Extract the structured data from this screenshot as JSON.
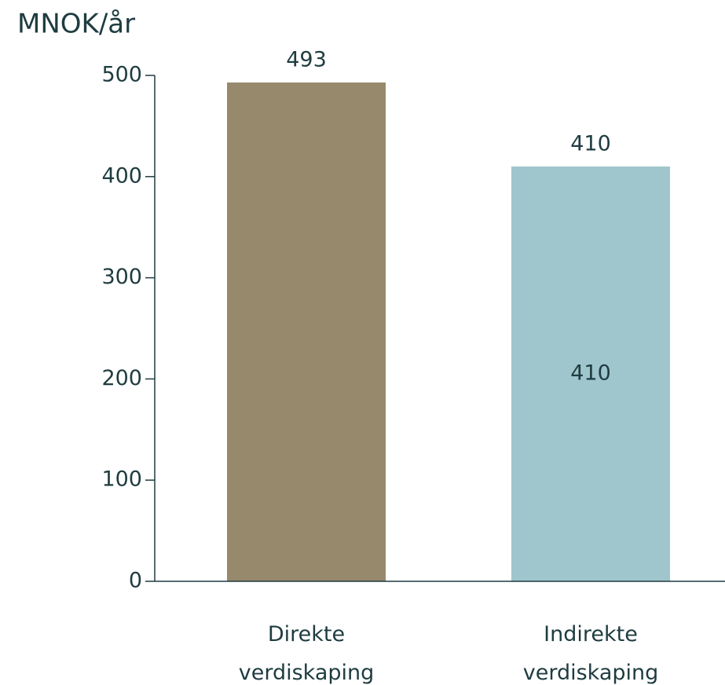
{
  "chart_data": {
    "type": "bar",
    "y_label": "MNOK/år",
    "categories": [
      "Direkte\nverdiskaping",
      "Indirekte\nverdiskaping"
    ],
    "values": [
      493,
      410
    ],
    "inner_values": [
      null,
      410
    ],
    "colors": [
      "#97896b",
      "#9fc6cd"
    ],
    "ylim": [
      0,
      500
    ],
    "yticks": [
      0,
      100,
      200,
      300,
      400,
      500
    ],
    "grid": false
  }
}
